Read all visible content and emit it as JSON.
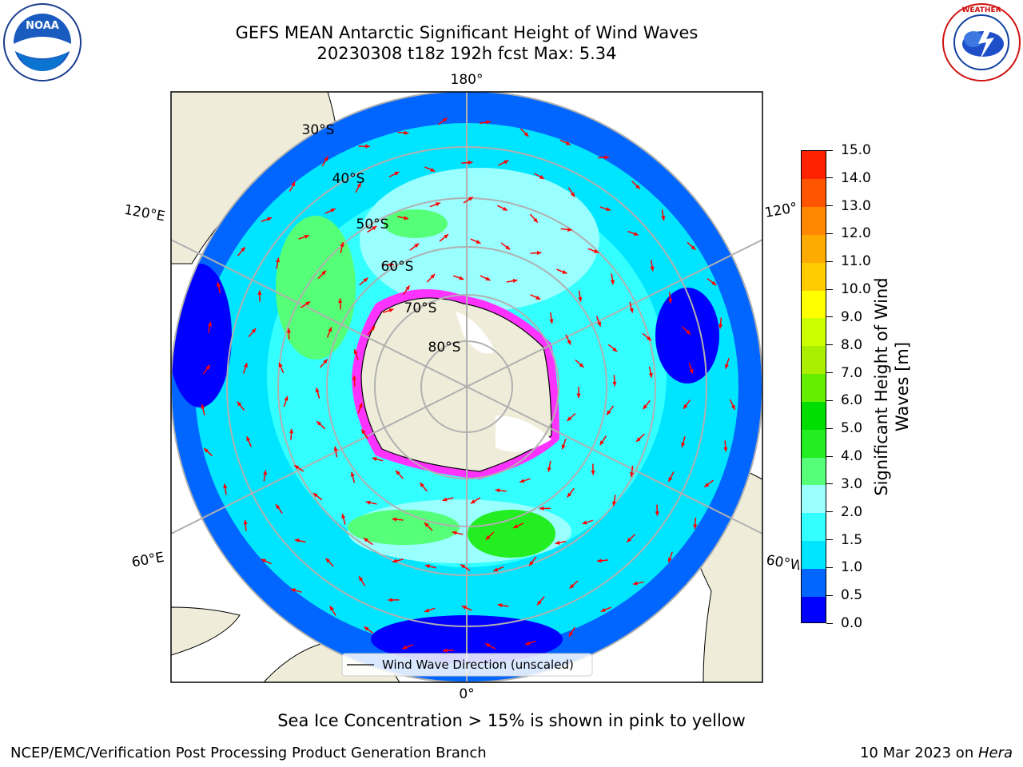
{
  "title": {
    "line1": "GEFS MEAN Antarctic Significant Height of Wind Waves",
    "line2": "20230308 t18z 192h fcst   Max: 5.34"
  },
  "logos": {
    "left": "NOAA",
    "right": "NATIONAL WEATHER SERVICE"
  },
  "map": {
    "projection": "south-polar-stereographic",
    "longitude_labels": {
      "top": "180°",
      "bottom": "0°",
      "left_upper": "120°E",
      "left_lower": "60°E",
      "right_upper": "120°",
      "right_lower": "60°W"
    },
    "latitude_labels": [
      "30°S",
      "40°S",
      "50°S",
      "60°S",
      "70°S",
      "80°S"
    ],
    "legend": "Wind Wave Direction (unscaled)",
    "colors": {
      "land": "#efedda",
      "coastline": "#000000",
      "grid": "#b0b0b0",
      "arrow": "#ff0000",
      "ice": "#ff33ff"
    }
  },
  "colorbar": {
    "title": "Significant Height of Wind Waves [m]",
    "ticks": [
      "0.0",
      "0.5",
      "1.0",
      "1.5",
      "2.0",
      "3.0",
      "4.0",
      "5.0",
      "6.0",
      "7.0",
      "8.0",
      "9.0",
      "10.0",
      "11.0",
      "12.0",
      "13.0",
      "14.0",
      "15.0"
    ],
    "colors": [
      "#0000ff",
      "#0066ff",
      "#00e5ff",
      "#33ffff",
      "#99ffff",
      "#55ff77",
      "#22ee22",
      "#00dd00",
      "#66ee00",
      "#aaee00",
      "#ccff00",
      "#ffff00",
      "#ffcc00",
      "#ffaa00",
      "#ff8800",
      "#ff5500",
      "#ff2200"
    ]
  },
  "footnote": "Sea Ice Concentration > 15% is shown in pink to yellow",
  "credit": {
    "left": "NCEP/EMC/Verification Post Processing Product Generation Branch",
    "date": "10 Mar 2023 on ",
    "host": "Hera"
  }
}
